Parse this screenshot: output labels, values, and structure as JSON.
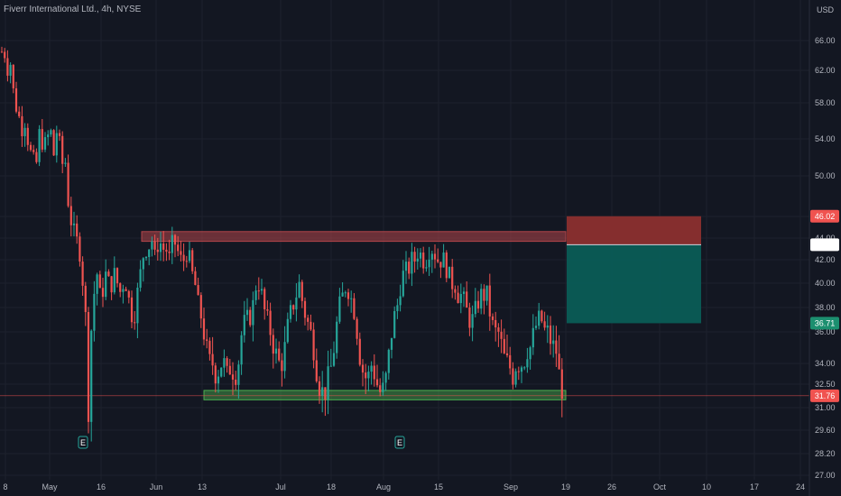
{
  "chart_data": {
    "type": "candlestick",
    "title": "Fiverr International Ltd., 4h, NYSE",
    "currency": "USD",
    "y_ticks": [
      66.0,
      62.0,
      58.0,
      54.0,
      50.0,
      46.0,
      44.0,
      42.0,
      40.0,
      38.0,
      36.0,
      34.0,
      32.5,
      31.0,
      29.6,
      28.2,
      27.0
    ],
    "x_labels": [
      "8",
      "May",
      "16",
      "Jun",
      "13",
      "Jul",
      "18",
      "Aug",
      "15",
      "Sep",
      "19",
      "26",
      "Oct",
      "10",
      "17",
      "24"
    ],
    "last_price": "31.76",
    "short_position": {
      "entry": "43.39",
      "stop": "46.02",
      "target": "36.71"
    },
    "zones": [
      {
        "name": "resistance",
        "from": 43.7,
        "to": 44.6
      },
      {
        "name": "support",
        "from": 31.5,
        "to": 32.1
      }
    ],
    "event_markers": [
      "E",
      "E"
    ],
    "colors": {
      "up": "#26a69a",
      "down": "#ef5350",
      "background": "#131722",
      "grid": "#1e222d",
      "resistance_zone": "#b2454a",
      "support_zone": "#4caf50",
      "stop_area": "#8b2f2f",
      "target_area": "#0a5c56"
    },
    "path": [
      [
        0,
        64
      ],
      [
        4,
        65
      ],
      [
        8,
        62
      ],
      [
        12,
        63
      ],
      [
        16,
        58
      ],
      [
        20,
        57
      ],
      [
        24,
        55
      ],
      [
        28,
        56
      ],
      [
        32,
        53
      ],
      [
        36,
        52
      ],
      [
        40,
        51
      ],
      [
        44,
        55
      ],
      [
        48,
        53
      ],
      [
        52,
        54
      ],
      [
        56,
        55
      ],
      [
        60,
        52
      ],
      [
        64,
        56
      ],
      [
        68,
        51
      ],
      [
        72,
        52
      ],
      [
        76,
        47
      ],
      [
        80,
        45
      ],
      [
        84,
        44
      ],
      [
        88,
        43
      ],
      [
        92,
        40
      ],
      [
        96,
        36
      ],
      [
        98,
        31
      ],
      [
        100,
        35
      ],
      [
        104,
        39
      ],
      [
        108,
        41
      ],
      [
        112,
        38
      ],
      [
        116,
        41
      ],
      [
        120,
        40
      ],
      [
        124,
        40
      ],
      [
        128,
        41
      ],
      [
        132,
        39
      ],
      [
        136,
        40
      ],
      [
        140,
        40
      ],
      [
        144,
        38
      ],
      [
        148,
        37
      ],
      [
        152,
        39
      ],
      [
        156,
        41
      ],
      [
        160,
        43
      ],
      [
        164,
        43
      ],
      [
        168,
        44
      ],
      [
        172,
        42
      ],
      [
        176,
        44
      ],
      [
        180,
        43
      ],
      [
        184,
        43
      ],
      [
        188,
        42
      ],
      [
        192,
        44
      ],
      [
        196,
        43
      ],
      [
        200,
        42
      ],
      [
        204,
        42
      ],
      [
        208,
        43
      ],
      [
        212,
        41
      ],
      [
        216,
        40
      ],
      [
        220,
        38
      ],
      [
        224,
        37
      ],
      [
        228,
        35
      ],
      [
        232,
        34
      ],
      [
        236,
        34
      ],
      [
        240,
        33
      ],
      [
        244,
        34
      ],
      [
        248,
        34
      ],
      [
        252,
        33
      ],
      [
        256,
        34
      ],
      [
        260,
        33
      ],
      [
        264,
        34
      ],
      [
        268,
        36
      ],
      [
        272,
        37
      ],
      [
        276,
        37
      ],
      [
        280,
        38
      ],
      [
        284,
        40
      ],
      [
        288,
        40
      ],
      [
        292,
        38
      ],
      [
        296,
        37
      ],
      [
        300,
        36
      ],
      [
        304,
        35
      ],
      [
        308,
        34
      ],
      [
        312,
        34
      ],
      [
        316,
        35
      ],
      [
        320,
        37
      ],
      [
        324,
        38
      ],
      [
        328,
        39
      ],
      [
        332,
        40
      ],
      [
        336,
        38
      ],
      [
        340,
        37
      ],
      [
        344,
        36
      ],
      [
        348,
        35
      ],
      [
        352,
        33
      ],
      [
        356,
        32
      ],
      [
        360,
        32
      ],
      [
        364,
        33
      ],
      [
        368,
        34
      ],
      [
        372,
        36
      ],
      [
        376,
        38
      ],
      [
        380,
        39
      ],
      [
        384,
        40
      ],
      [
        388,
        39
      ],
      [
        392,
        38
      ],
      [
        396,
        36
      ],
      [
        400,
        34
      ],
      [
        404,
        33
      ],
      [
        408,
        33
      ],
      [
        412,
        34
      ],
      [
        416,
        33
      ],
      [
        420,
        32
      ],
      [
        424,
        32
      ],
      [
        428,
        33
      ],
      [
        432,
        35
      ],
      [
        436,
        37
      ],
      [
        440,
        38
      ],
      [
        444,
        40
      ],
      [
        448,
        41
      ],
      [
        452,
        41
      ],
      [
        456,
        42
      ],
      [
        460,
        42
      ],
      [
        464,
        43
      ],
      [
        468,
        42
      ],
      [
        472,
        42
      ],
      [
        476,
        43
      ],
      [
        480,
        43
      ],
      [
        484,
        42
      ],
      [
        488,
        42
      ],
      [
        492,
        42
      ],
      [
        496,
        41
      ],
      [
        500,
        40
      ],
      [
        504,
        40
      ],
      [
        508,
        39
      ],
      [
        512,
        39
      ],
      [
        516,
        38
      ],
      [
        520,
        37
      ],
      [
        524,
        37
      ],
      [
        528,
        38
      ],
      [
        532,
        39
      ],
      [
        536,
        39
      ],
      [
        540,
        39
      ],
      [
        544,
        37
      ],
      [
        548,
        36
      ],
      [
        552,
        36
      ],
      [
        556,
        35
      ],
      [
        560,
        34
      ],
      [
        564,
        34
      ],
      [
        568,
        33
      ],
      [
        572,
        34
      ],
      [
        576,
        34
      ],
      [
        580,
        34
      ],
      [
        584,
        35
      ],
      [
        588,
        35
      ],
      [
        592,
        36
      ],
      [
        596,
        37
      ],
      [
        600,
        37
      ],
      [
        604,
        36
      ],
      [
        608,
        36
      ],
      [
        612,
        35
      ],
      [
        616,
        35
      ],
      [
        620,
        33
      ],
      [
        624,
        32
      ],
      [
        628,
        31.8
      ]
    ]
  }
}
